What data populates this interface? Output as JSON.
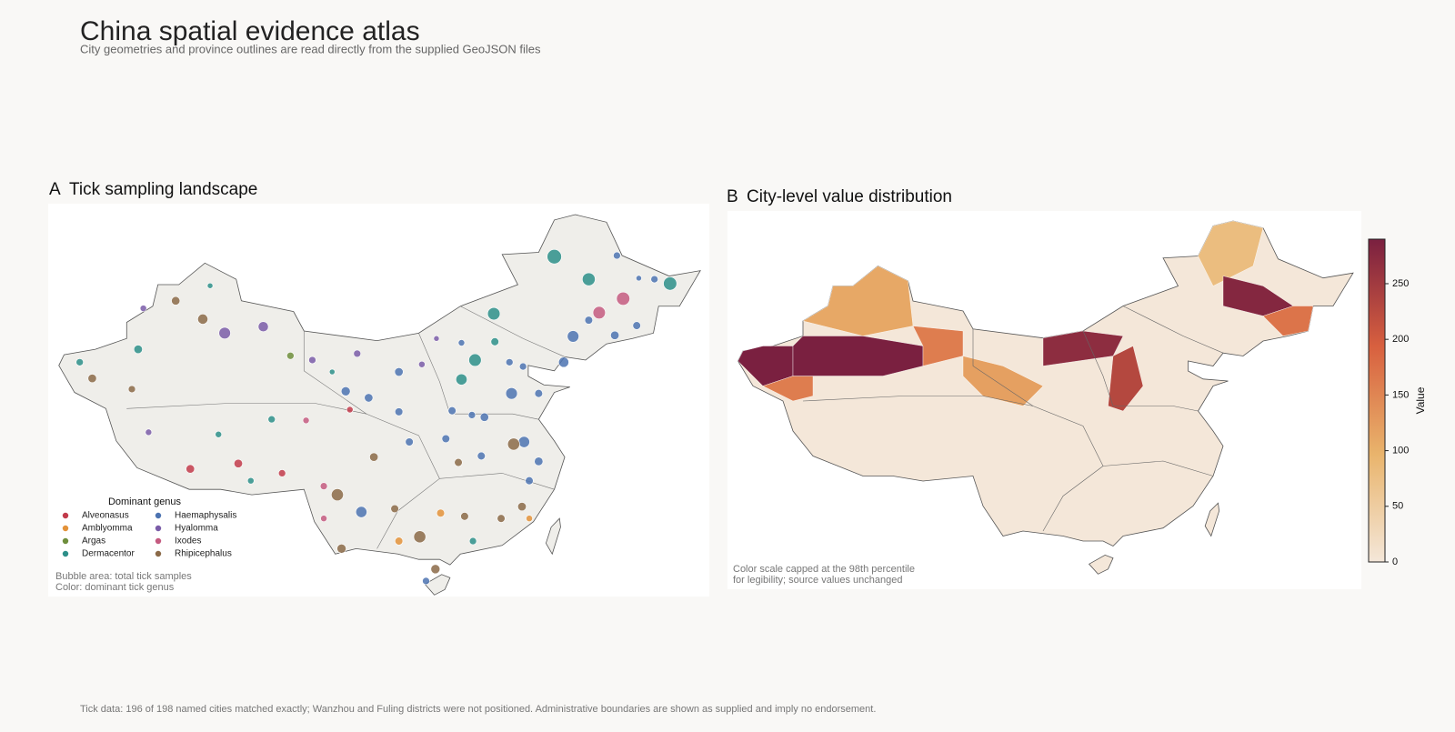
{
  "header": {
    "title": "China spatial evidence atlas",
    "subtitle": "City geometries and province outlines are read directly from the supplied GeoJSON files"
  },
  "panel_a": {
    "label": "A",
    "title": "Tick sampling landscape",
    "legend_title": "Dominant genus",
    "genera": [
      {
        "name": "Alveonasus",
        "color": "#c23b4b",
        "points": [
          [
            86.1,
            29.9,
            14
          ],
          [
            90.7,
            30.4,
            14
          ],
          [
            94.9,
            29.5,
            10
          ],
          [
            101.4,
            35.4,
            8
          ]
        ]
      },
      {
        "name": "Amblyomma",
        "color": "#e3923a",
        "points": [
          [
            110.1,
            25.8,
            12
          ],
          [
            106.1,
            23.2,
            12
          ],
          [
            118.6,
            25.3,
            8
          ]
        ]
      },
      {
        "name": "Argas",
        "color": "#6e8e3c",
        "points": [
          [
            95.7,
            40.4,
            10
          ]
        ]
      },
      {
        "name": "Dermacentor",
        "color": "#2d8f89",
        "points": [
          [
            75.5,
            39.8,
            10
          ],
          [
            81.1,
            41.0,
            14
          ],
          [
            88.0,
            46.9,
            6
          ],
          [
            88.8,
            33.1,
            8
          ],
          [
            91.9,
            28.8,
            8
          ],
          [
            93.9,
            34.5,
            10
          ],
          [
            99.7,
            38.9,
            6
          ],
          [
            113.4,
            40.0,
            30
          ],
          [
            112.1,
            38.2,
            24
          ],
          [
            115.2,
            44.3,
            30
          ],
          [
            115.3,
            41.7,
            12
          ],
          [
            124.3,
            47.5,
            32
          ],
          [
            121.0,
            49.6,
            40
          ],
          [
            132.1,
            47.1,
            34
          ],
          [
            113.2,
            23.2,
            10
          ]
        ]
      },
      {
        "name": "Haemaphysalis",
        "color": "#4c73b1",
        "points": [
          [
            101.0,
            37.1,
            16
          ],
          [
            103.2,
            36.5,
            14
          ],
          [
            102.5,
            25.9,
            24
          ],
          [
            106.1,
            38.9,
            14
          ],
          [
            112.1,
            41.6,
            8
          ],
          [
            114.3,
            34.7,
            14
          ],
          [
            113.1,
            34.9,
            10
          ],
          [
            111.2,
            35.3,
            12
          ],
          [
            110.6,
            32.7,
            12
          ],
          [
            114.0,
            31.1,
            12
          ],
          [
            116.9,
            36.9,
            26
          ],
          [
            116.7,
            39.8,
            10
          ],
          [
            119.5,
            36.9,
            12
          ],
          [
            121.9,
            39.8,
            20
          ],
          [
            122.8,
            42.2,
            26
          ],
          [
            124.3,
            43.7,
            12
          ],
          [
            126.8,
            42.3,
            14
          ],
          [
            128.9,
            43.2,
            12
          ],
          [
            127.0,
            49.7,
            10
          ],
          [
            129.1,
            47.6,
            6
          ],
          [
            130.6,
            47.5,
            10
          ],
          [
            118.0,
            39.4,
            10
          ],
          [
            118.6,
            28.8,
            12
          ],
          [
            118.1,
            32.4,
            24
          ],
          [
            119.5,
            30.6,
            14
          ],
          [
            108.7,
            19.5,
            10
          ],
          [
            106.1,
            35.2,
            12
          ],
          [
            107.1,
            32.4,
            12
          ]
        ]
      },
      {
        "name": "Hyalomma",
        "color": "#7a5ca8",
        "points": [
          [
            81.6,
            44.8,
            8
          ],
          [
            89.4,
            42.5,
            26
          ],
          [
            93.1,
            43.1,
            20
          ],
          [
            82.1,
            33.3,
            8
          ],
          [
            97.8,
            40.0,
            10
          ],
          [
            102.1,
            40.6,
            10
          ],
          [
            108.3,
            39.6,
            8
          ],
          [
            109.7,
            42.0,
            6
          ]
        ]
      },
      {
        "name": "Ixodes",
        "color": "#c45a80",
        "points": [
          [
            97.2,
            34.4,
            8
          ],
          [
            98.9,
            28.3,
            10
          ],
          [
            98.9,
            25.3,
            8
          ],
          [
            125.3,
            44.4,
            30
          ],
          [
            127.6,
            45.7,
            34
          ]
        ]
      },
      {
        "name": "Rhipicephalus",
        "color": "#8b6a48",
        "points": [
          [
            76.7,
            38.3,
            14
          ],
          [
            80.5,
            37.3,
            10
          ],
          [
            84.7,
            45.5,
            14
          ],
          [
            87.3,
            43.8,
            20
          ],
          [
            100.2,
            27.5,
            28
          ],
          [
            100.6,
            22.5,
            16
          ],
          [
            103.7,
            31.0,
            14
          ],
          [
            111.8,
            30.5,
            12
          ],
          [
            117.1,
            32.2,
            28
          ],
          [
            117.9,
            26.4,
            14
          ],
          [
            115.9,
            25.3,
            12
          ],
          [
            112.4,
            25.5,
            12
          ],
          [
            108.1,
            23.6,
            28
          ],
          [
            109.6,
            20.6,
            16
          ],
          [
            105.7,
            26.2,
            12
          ]
        ]
      }
    ],
    "notes": [
      "Bubble area: total tick samples",
      "Color: dominant tick genus"
    ]
  },
  "panel_b": {
    "label": "B",
    "title": "City-level value distribution",
    "region_values": [
      290,
      160,
      290,
      160,
      110,
      270,
      80,
      280,
      230,
      170,
      120
    ],
    "colorbar": {
      "label": "Value",
      "lim": [
        0,
        290
      ],
      "ticks": [
        0,
        50,
        100,
        150,
        200,
        250
      ],
      "colors": [
        "#f4e7d9",
        "#e9b46c",
        "#d8603f",
        "#7a2040"
      ]
    },
    "notes": [
      "Color scale capped at the 98th percentile",
      "for legibility; source values unchanged"
    ]
  },
  "footer": "Tick data: 196 of 198 named cities matched exactly; Wanzhou and Fuling districts were not positioned. Administrative boundaries are shown as supplied and imply no endorsement."
}
